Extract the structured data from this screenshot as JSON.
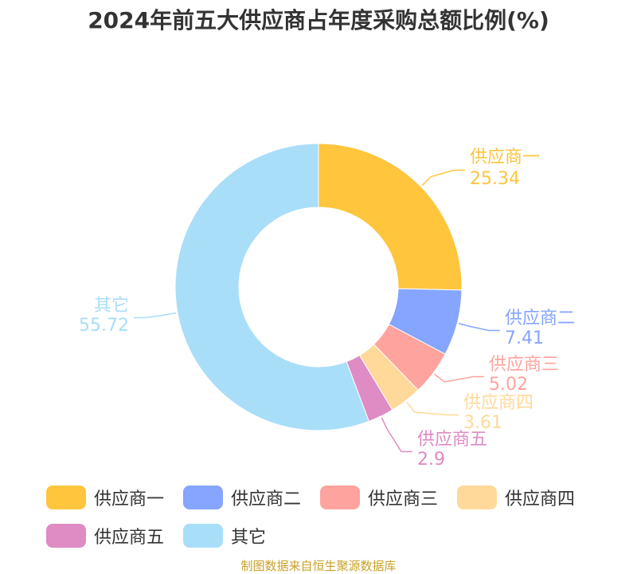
{
  "chart_data": {
    "type": "pie",
    "title": "2024年前五大供应商占年度采购总额比例(%)",
    "categories": [
      "供应商一",
      "供应商二",
      "供应商三",
      "供应商四",
      "供应商五",
      "其它"
    ],
    "values": [
      25.34,
      7.41,
      5.02,
      3.61,
      2.9,
      55.72
    ],
    "value_labels": [
      "25.34",
      "7.41",
      "5.02",
      "3.61",
      "2.9",
      "55.72"
    ],
    "colors": [
      "#ffc53d",
      "#85a5ff",
      "#ffa39e",
      "#ffd99a",
      "#df8bc4",
      "#a9def9"
    ],
    "donut": true,
    "legend_position": "bottom"
  },
  "source": "制图数据来自恒生聚源数据库"
}
